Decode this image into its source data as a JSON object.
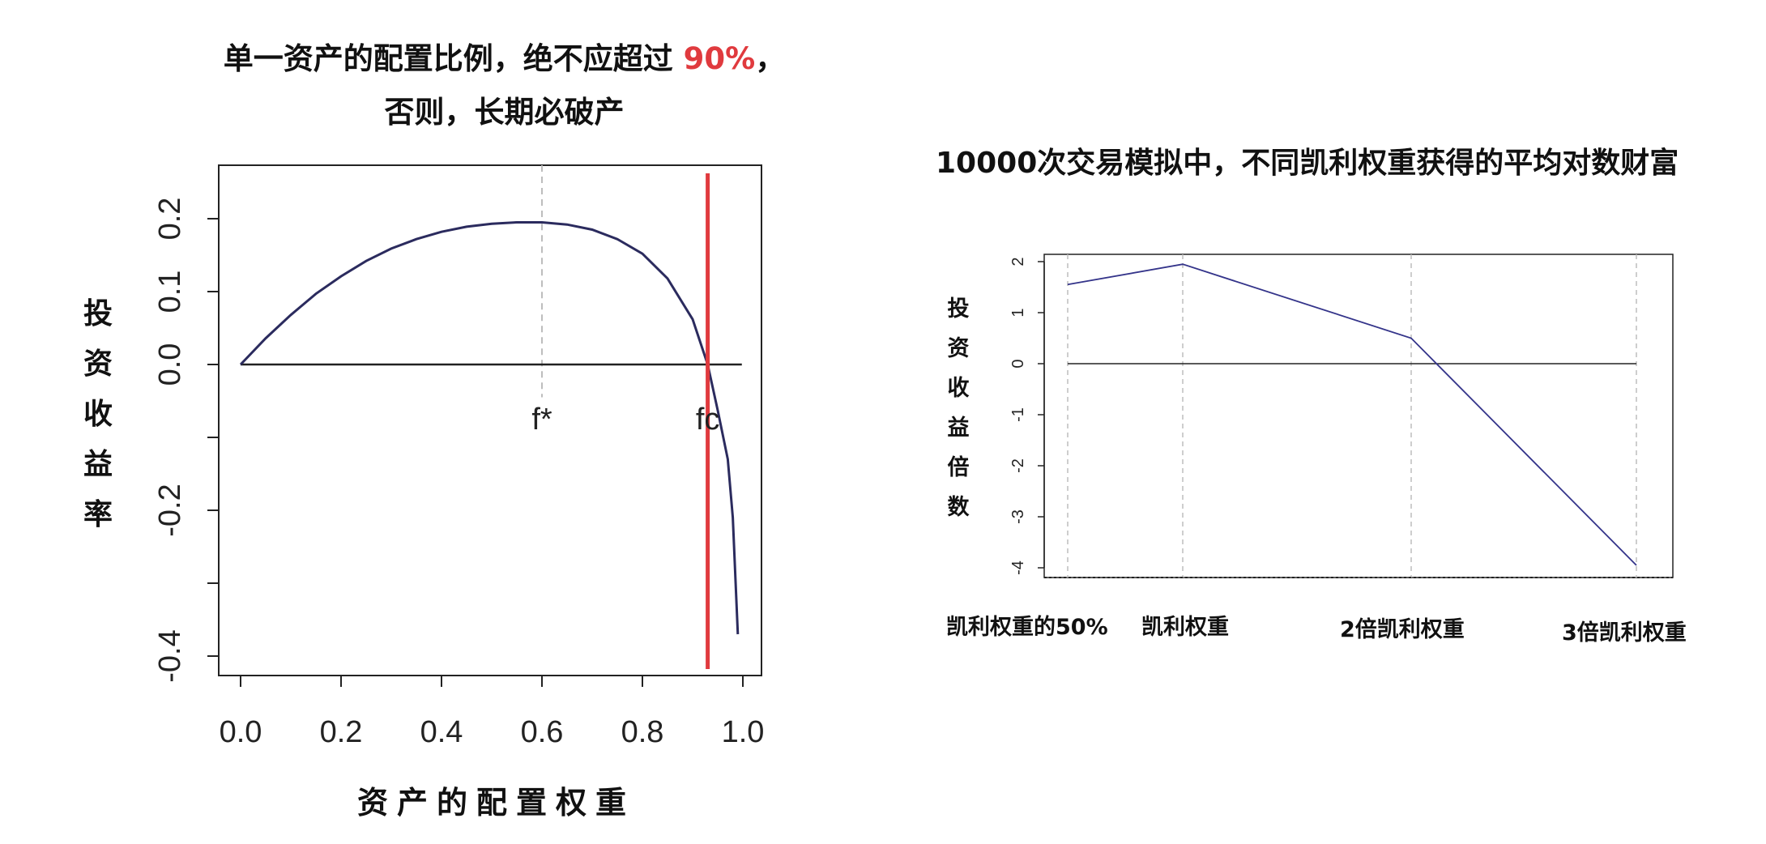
{
  "colors": {
    "accent": "#e03a3e",
    "curve": "#2b2b5e",
    "line2": "#34348a",
    "grid": "#bdbdbd"
  },
  "left": {
    "title_line1_prefix": "单一资产的配置比例，绝不应超过 ",
    "title_line1_highlight": "90%",
    "title_line1_suffix": "，",
    "title_line2": "否则，长期必破产",
    "ylabel_chars": [
      "投",
      "资",
      "收",
      "益",
      "率"
    ],
    "xlabel": "资产的配置权重",
    "annotation_fstar": "f*",
    "annotation_fc": "fc"
  },
  "right": {
    "title": "10000次交易模拟中，不同凯利权重获得的平均对数财富",
    "ylabel_chars": [
      "投",
      "资",
      "收",
      "益",
      "倍",
      "数"
    ],
    "category_labels": [
      "凯利权重的50%",
      "凯利权重",
      "2倍凯利权重",
      "3倍凯利权重"
    ]
  },
  "chart_data": [
    {
      "type": "line",
      "title": "单一资产的配置比例，绝不应超过 90%，否则，长期必破产",
      "xlabel": "资产的配置权重",
      "ylabel": "投资收益率",
      "xlim": [
        0.0,
        1.0
      ],
      "ylim": [
        -0.4,
        0.2
      ],
      "xticks": [
        "0.0",
        "0.2",
        "0.4",
        "0.6",
        "0.8",
        "1.0"
      ],
      "yticks": [
        "-0.4",
        "-0.2",
        "0.0",
        "0.1",
        "0.2"
      ],
      "series": [
        {
          "x": [
            0.0,
            0.05,
            0.1,
            0.15,
            0.2,
            0.25,
            0.3,
            0.35,
            0.4,
            0.45,
            0.5,
            0.55,
            0.6,
            0.65,
            0.7,
            0.75,
            0.8,
            0.85,
            0.9,
            0.93,
            0.95,
            0.97,
            0.98,
            0.99
          ],
          "y": [
            0.0,
            0.036,
            0.068,
            0.097,
            0.121,
            0.142,
            0.159,
            0.172,
            0.182,
            0.189,
            0.193,
            0.195,
            0.195,
            0.192,
            0.185,
            0.172,
            0.152,
            0.118,
            0.062,
            0.0,
            -0.063,
            -0.13,
            -0.21,
            -0.37
          ]
        }
      ],
      "annotations": [
        {
          "text": "f*",
          "x": 0.6,
          "y": -0.08
        },
        {
          "text": "fc",
          "x": 0.93,
          "y": -0.08
        }
      ],
      "reference_lines": {
        "horizontal_y": 0.0,
        "dashed_x": 0.6,
        "red_vertical_x": 0.93
      }
    },
    {
      "type": "line",
      "title": "10000次交易模拟中，不同凯利权重获得的平均对数财富",
      "ylabel": "投资收益倍数",
      "categories": [
        "凯利权重的50%",
        "凯利权重",
        "2倍凯利权重",
        "3倍凯利权重"
      ],
      "values": [
        1.55,
        1.95,
        0.5,
        -3.95
      ],
      "ylim": [
        -4,
        2
      ],
      "yticks": [
        "-4",
        "-3",
        "-2",
        "-1",
        "0",
        "1",
        "2"
      ],
      "reference_lines": {
        "horizontal_y": 0
      },
      "grid": "vertical dashed at each category"
    }
  ]
}
